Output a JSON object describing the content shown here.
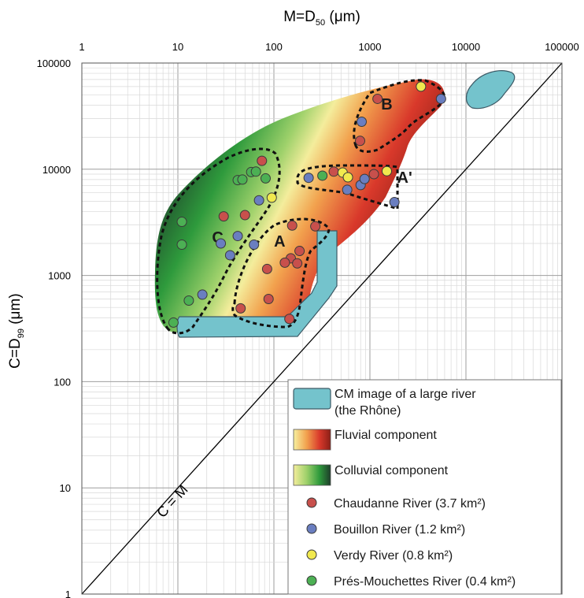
{
  "chart_data": {
    "type": "scatter",
    "x_axis": {
      "label_main": "M=D",
      "label_sub": "50",
      "label_unit": " (μm)",
      "scale": "log",
      "range": [
        1,
        100000
      ],
      "ticks": [
        {
          "value": 1,
          "label": "1"
        },
        {
          "value": 10,
          "label": "10"
        },
        {
          "value": 100,
          "label": "100"
        },
        {
          "value": 1000,
          "label": "1000"
        },
        {
          "value": 10000,
          "label": "10000"
        },
        {
          "value": 100000,
          "label": "100000"
        }
      ],
      "position": "top"
    },
    "y_axis": {
      "label_main": "C=D",
      "label_sub": "99",
      "label_unit": " (μm)",
      "scale": "log",
      "range": [
        1,
        100000
      ],
      "ticks": [
        {
          "value": 1,
          "label": "1"
        },
        {
          "value": 10,
          "label": "10"
        },
        {
          "value": 100,
          "label": "100"
        },
        {
          "value": 1000,
          "label": "1000"
        },
        {
          "value": 10000,
          "label": "10000"
        },
        {
          "value": 100000,
          "label": "100000"
        }
      ]
    },
    "grid": true,
    "diagonal_label": "C = M",
    "regions": [
      {
        "label": "A",
        "label_at": [
          115,
          2100
        ]
      },
      {
        "label": "A'",
        "label_at": [
          2300,
          8400
        ]
      },
      {
        "label": "B",
        "label_at": [
          1500,
          41000
        ]
      },
      {
        "label": "C",
        "label_at": [
          26,
          2300
        ]
      }
    ],
    "series": [
      {
        "name": "Chaudanne River (3.7 km²)",
        "color": "#c8504c",
        "points": [
          {
            "x": 75,
            "y": 12000
          },
          {
            "x": 30,
            "y": 3600
          },
          {
            "x": 50,
            "y": 3700
          },
          {
            "x": 155,
            "y": 2950
          },
          {
            "x": 270,
            "y": 2900
          },
          {
            "x": 150,
            "y": 1450
          },
          {
            "x": 130,
            "y": 1320
          },
          {
            "x": 185,
            "y": 1700
          },
          {
            "x": 175,
            "y": 1300
          },
          {
            "x": 85,
            "y": 1150
          },
          {
            "x": 88,
            "y": 600
          },
          {
            "x": 45,
            "y": 490
          },
          {
            "x": 145,
            "y": 390
          },
          {
            "x": 420,
            "y": 9500
          },
          {
            "x": 790,
            "y": 18500
          },
          {
            "x": 1200,
            "y": 46000
          },
          {
            "x": 1100,
            "y": 9000
          }
        ]
      },
      {
        "name": "Bouillon River (1.2 km²)",
        "color": "#6a7ec0",
        "points": [
          {
            "x": 28,
            "y": 2000
          },
          {
            "x": 42,
            "y": 2350
          },
          {
            "x": 35,
            "y": 1550
          },
          {
            "x": 62,
            "y": 1950
          },
          {
            "x": 70,
            "y": 5100
          },
          {
            "x": 18,
            "y": 660
          },
          {
            "x": 230,
            "y": 8300
          },
          {
            "x": 580,
            "y": 6400
          },
          {
            "x": 800,
            "y": 7100
          },
          {
            "x": 880,
            "y": 8100
          },
          {
            "x": 820,
            "y": 28000
          },
          {
            "x": 1800,
            "y": 4900
          },
          {
            "x": 5500,
            "y": 46000
          }
        ]
      },
      {
        "name": "Verdy River (0.8 km²)",
        "color": "#f1e94e",
        "points": [
          {
            "x": 95,
            "y": 5400
          },
          {
            "x": 520,
            "y": 9300
          },
          {
            "x": 590,
            "y": 8400
          },
          {
            "x": 1500,
            "y": 9600
          },
          {
            "x": 3400,
            "y": 60000
          }
        ]
      },
      {
        "name": "Prés-Mouchettes River (0.4 km²)",
        "color": "#4cb054",
        "points": [
          {
            "x": 11,
            "y": 3200
          },
          {
            "x": 11,
            "y": 1950
          },
          {
            "x": 13,
            "y": 580
          },
          {
            "x": 9,
            "y": 360
          },
          {
            "x": 42,
            "y": 7900
          },
          {
            "x": 47,
            "y": 8000
          },
          {
            "x": 58,
            "y": 9400
          },
          {
            "x": 65,
            "y": 9500
          },
          {
            "x": 82,
            "y": 8200
          },
          {
            "x": 320,
            "y": 8700
          }
        ]
      }
    ],
    "legend": {
      "placement": "bottom-right",
      "items": [
        {
          "kind": "swatch",
          "style": "rhone",
          "text_lines": [
            "CM image of a large river",
            "(the Rhône)"
          ]
        },
        {
          "kind": "swatch",
          "style": "fluvial",
          "text_lines": [
            "Fluvial component"
          ]
        },
        {
          "kind": "swatch",
          "style": "colluvial",
          "text_lines": [
            "Colluvial component"
          ]
        },
        {
          "kind": "marker",
          "series": 0,
          "text_lines": [
            "Chaudanne River (3.7 km²)"
          ]
        },
        {
          "kind": "marker",
          "series": 1,
          "text_lines": [
            "Bouillon River (1.2 km²)"
          ]
        },
        {
          "kind": "marker",
          "series": 2,
          "text_lines": [
            "Verdy River (0.8 km²)"
          ]
        },
        {
          "kind": "marker",
          "series": 3,
          "text_lines": [
            "Prés-Mouchettes River (0.4 km²)"
          ]
        }
      ]
    },
    "colors": {
      "rhone_fill": "#74c3cc",
      "rhone_stroke": "#3d5a66",
      "fluvial": [
        "#f6f0a0",
        "#f2a24e",
        "#d9392b",
        "#8c1f17"
      ],
      "colluvial": [
        "#f4ed9c",
        "#9fd16b",
        "#2e9a3c",
        "#1e3d2a"
      ],
      "marker_stroke": "#3a3a3a",
      "grid_major": "#9e9e9e",
      "grid_minor": "#d8d8d8"
    }
  }
}
